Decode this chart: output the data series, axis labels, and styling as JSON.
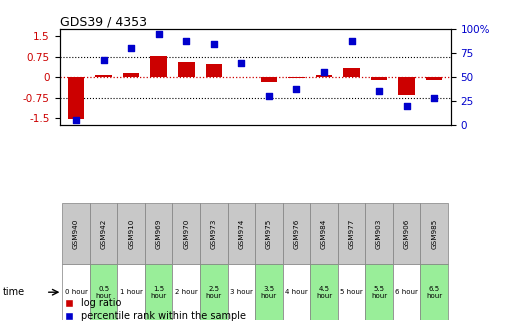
{
  "title": "GDS39 / 4353",
  "samples": [
    "GSM940",
    "GSM942",
    "GSM910",
    "GSM969",
    "GSM970",
    "GSM973",
    "GSM974",
    "GSM975",
    "GSM976",
    "GSM984",
    "GSM977",
    "GSM903",
    "GSM906",
    "GSM985"
  ],
  "time_labels": [
    "0 hour",
    "0.5\nhour",
    "1 hour",
    "1.5\nhour",
    "2 hour",
    "2.5\nhour",
    "3 hour",
    "3.5\nhour",
    "4 hour",
    "4.5\nhour",
    "5 hour",
    "5.5\nhour",
    "6 hour",
    "6.5\nhour"
  ],
  "log_ratio": [
    -1.55,
    0.08,
    0.15,
    0.78,
    0.55,
    0.48,
    0.0,
    -0.18,
    -0.05,
    0.08,
    0.35,
    -0.1,
    -0.65,
    -0.1
  ],
  "percentile": [
    5,
    68,
    80,
    95,
    88,
    85,
    65,
    30,
    38,
    55,
    88,
    35,
    20,
    28
  ],
  "ylim_left": [
    -1.75,
    1.75
  ],
  "ylim_right": [
    0,
    100
  ],
  "yticks_left": [
    -1.5,
    -0.75,
    0,
    0.75,
    1.5
  ],
  "yticks_right": [
    0,
    25,
    50,
    75,
    100
  ],
  "bar_color": "#cc0000",
  "scatter_color": "#0000cc",
  "bg_chart": "#ffffff",
  "time_bg_white": [
    0,
    2,
    4,
    6,
    8,
    10,
    12
  ],
  "time_bg_green": [
    1,
    3,
    5,
    7,
    9,
    11,
    13
  ],
  "green_color": "#99ee99",
  "legend_labels": [
    "log ratio",
    "percentile rank within the sample"
  ]
}
